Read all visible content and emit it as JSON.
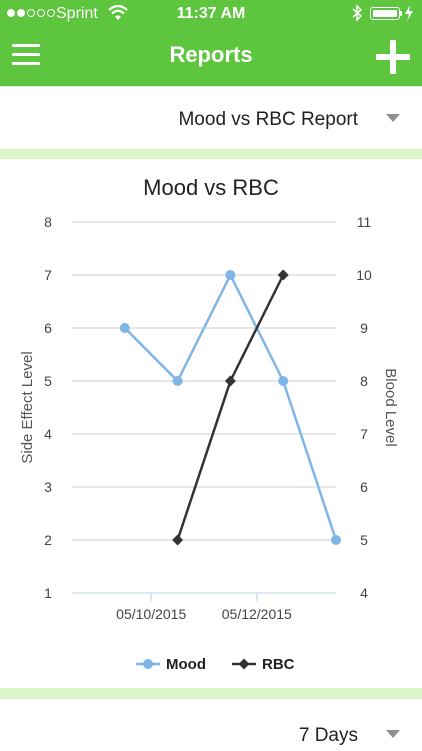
{
  "status_bar": {
    "carrier": "Sprint",
    "time": "11:37 AM",
    "signal_dots_filled": 2,
    "signal_dots_total": 5,
    "battery_level": 1.0,
    "icons": [
      "signal-dots-icon",
      "wifi-icon",
      "bluetooth-icon",
      "battery-icon",
      "charging-bolt-icon"
    ]
  },
  "nav": {
    "title": "Reports",
    "menu_icon": "hamburger-menu-icon",
    "add_icon": "plus-icon"
  },
  "report_selector": {
    "value": "Mood vs RBC Report",
    "icon": "dropdown-caret-icon"
  },
  "range_selector": {
    "value": "7 Days",
    "icon": "dropdown-caret-icon"
  },
  "colors": {
    "brand_green": "#5ec53e",
    "separator_green": "#ddf7c8",
    "mood_series": "#7fb6e8",
    "rbc_series": "#333333"
  },
  "chart_data": {
    "type": "line",
    "title": "Mood vs RBC",
    "y_label_left": "Side Effect Level",
    "y_label_right": "Blood Level",
    "y_left_range": [
      1,
      8
    ],
    "y_right_range": [
      4,
      11
    ],
    "y_left_ticks": [
      "1",
      "2",
      "3",
      "4",
      "5",
      "6",
      "7",
      "8"
    ],
    "y_right_ticks": [
      "4",
      "5",
      "6",
      "7",
      "8",
      "9",
      "10",
      "11"
    ],
    "x_range": [
      "05/08/2015 12:00",
      "05/13/2015 12:00"
    ],
    "x_ticks": [
      {
        "value": "05/10/2015",
        "label": "05/10/2015"
      },
      {
        "value": "05/12/2015",
        "label": "05/12/2015"
      }
    ],
    "grid": true,
    "legend": "bottom",
    "series": [
      {
        "name": "Mood",
        "axis": "left",
        "marker": "circle",
        "color": "#7fb6e8",
        "points": [
          {
            "x": "05/09/2015 12:00",
            "y": 6
          },
          {
            "x": "05/10/2015 12:00",
            "y": 5
          },
          {
            "x": "05/11/2015 12:00",
            "y": 7
          },
          {
            "x": "05/12/2015 12:00",
            "y": 5
          },
          {
            "x": "05/13/2015 12:00",
            "y": 2
          }
        ]
      },
      {
        "name": "RBC",
        "axis": "right",
        "marker": "diamond",
        "color": "#333333",
        "points": [
          {
            "x": "05/10/2015 12:00",
            "y": 5
          },
          {
            "x": "05/11/2015 12:00",
            "y": 8
          },
          {
            "x": "05/12/2015 12:00",
            "y": 10
          }
        ]
      }
    ]
  }
}
